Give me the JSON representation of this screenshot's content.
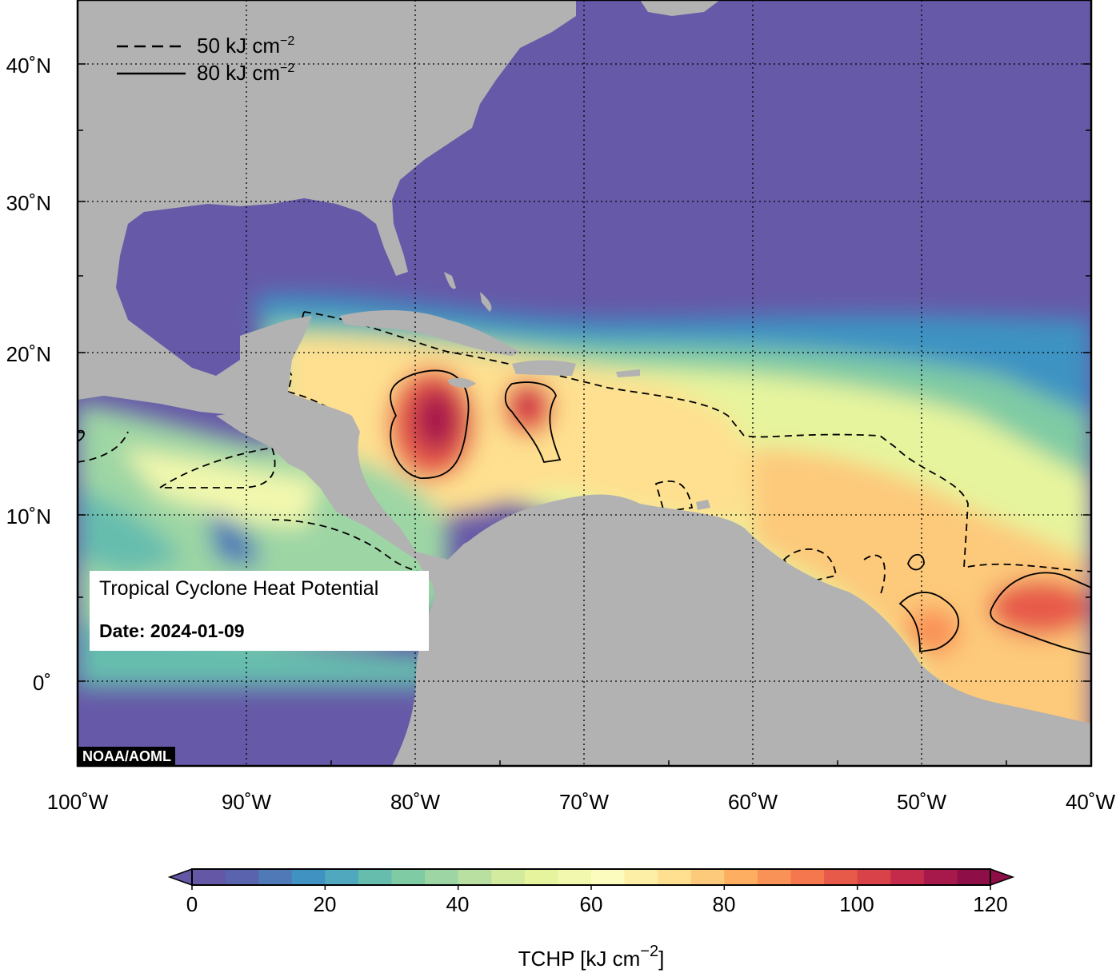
{
  "map": {
    "title": "Tropical Cyclone Heat Potential",
    "date_label": "Date:",
    "date_value": "2024-01-09",
    "credit": "NOAA/AOML",
    "lon_ticks": [
      "100˚W",
      "90˚W",
      "80˚W",
      "70˚W",
      "60˚W",
      "50˚W",
      "40˚W"
    ],
    "lat_ticks": [
      "0˚",
      "10˚N",
      "20˚N",
      "30˚N",
      "40˚N"
    ],
    "extent": {
      "lon_min": -100,
      "lon_max": -40,
      "lat_min": -5,
      "lat_max": 45
    },
    "land_color": "#b2b2b2",
    "ocean_cold_color": "#6659a8"
  },
  "legend": {
    "dashed_label": "50 kJ cm",
    "solid_label": "80 kJ cm",
    "exponent": "−2"
  },
  "colorbar": {
    "title": "TCHP [kJ cm",
    "title_exponent": "−2",
    "title_close": "]",
    "ticks": [
      "0",
      "20",
      "40",
      "60",
      "80",
      "100",
      "120"
    ],
    "colors": [
      "#6357a6",
      "#5a63ad",
      "#4f79b7",
      "#3f92c1",
      "#4fa8bd",
      "#66bdae",
      "#7fcba4",
      "#9dd6a4",
      "#b9e0a1",
      "#d2eb9e",
      "#e6f49d",
      "#f2f8ad",
      "#fcfcbe",
      "#feefa6",
      "#fee090",
      "#fdc97a",
      "#fdae61",
      "#f99257",
      "#f4774e",
      "#e75a49",
      "#d94248",
      "#c42b4b",
      "#a8194b",
      "#8e0f48"
    ]
  }
}
